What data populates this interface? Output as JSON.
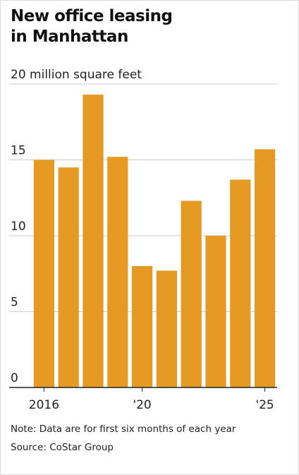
{
  "chart_data": {
    "type": "bar",
    "title": "New office leasing in Manhattan",
    "categories": [
      "2016",
      null,
      null,
      null,
      "'20",
      null,
      null,
      null,
      null,
      "'25"
    ],
    "values": [
      15.0,
      14.5,
      19.3,
      15.2,
      8.0,
      7.7,
      12.3,
      10.0,
      13.7,
      15.7
    ],
    "color": "#e59a24",
    "ylim": [
      0,
      20
    ],
    "yticks": [
      0,
      5,
      10,
      15,
      {
        "value": 20,
        "label": "20 million square feet"
      }
    ],
    "grid": true,
    "note": "Note: Data are for first six months of each year",
    "source": "Source: CoStar Group"
  }
}
